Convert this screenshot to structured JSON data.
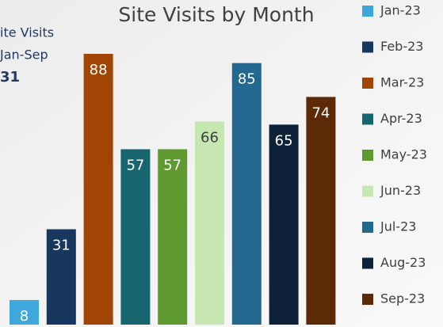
{
  "chart_data": {
    "type": "bar",
    "title": "Site Visits by Month",
    "annotations": [
      "ite Visits",
      "Jan-Sep",
      "31"
    ],
    "categories": [
      "Jan-23",
      "Feb-23",
      "Mar-23",
      "Apr-23",
      "May-23",
      "Jun-23",
      "Jul-23",
      "Aug-23",
      "Sep-23"
    ],
    "values": [
      8,
      31,
      88,
      57,
      57,
      66,
      85,
      65,
      74
    ],
    "colors": [
      "#3ea8dc",
      "#17375e",
      "#a04506",
      "#17656e",
      "#5f9a30",
      "#c6e7b2",
      "#23688f",
      "#0d2238",
      "#5c2a07"
    ],
    "legend": "right"
  }
}
